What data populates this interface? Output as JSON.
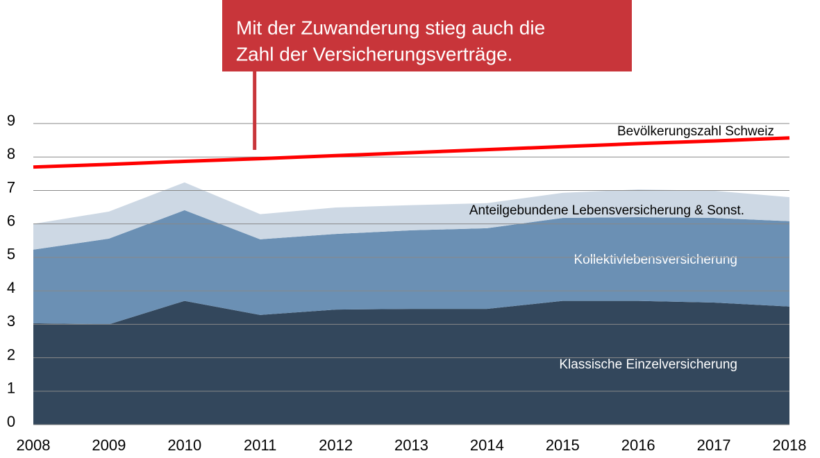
{
  "chart_data": {
    "type": "area",
    "stacked": true,
    "annotation": {
      "lines": [
        "Mit der Zuwanderung stieg auch die",
        "Zahl der Versicherungsverträge."
      ],
      "color": "#c8353a",
      "x": 2011
    },
    "x": [
      2008,
      2009,
      2010,
      2011,
      2012,
      2013,
      2014,
      2015,
      2016,
      2017,
      2018
    ],
    "series": [
      {
        "name": "Klassische Einzelversicherung",
        "color": "#33475c",
        "values": [
          3.03,
          3.0,
          3.7,
          3.28,
          3.44,
          3.46,
          3.46,
          3.7,
          3.7,
          3.65,
          3.53
        ]
      },
      {
        "name": "Kollektivlebensversicherung",
        "color": "#6b90b4",
        "values": [
          2.2,
          2.56,
          2.71,
          2.26,
          2.26,
          2.35,
          2.41,
          2.48,
          2.5,
          2.53,
          2.55
        ]
      },
      {
        "name": "Anteilgebundene Lebensversicherung & Sonst.",
        "color": "#cdd8e4",
        "values": [
          0.77,
          0.81,
          0.83,
          0.75,
          0.79,
          0.75,
          0.75,
          0.75,
          0.83,
          0.81,
          0.72
        ]
      },
      {
        "name": "Bevölkerungszahl Schweiz",
        "type": "line",
        "color": "#ff0000",
        "values": [
          7.7,
          7.78,
          7.87,
          7.95,
          8.04,
          8.13,
          8.22,
          8.31,
          8.4,
          8.48,
          8.57
        ]
      }
    ],
    "xlim": [
      2008,
      2018
    ],
    "xticks": [
      2008,
      2009,
      2010,
      2011,
      2012,
      2013,
      2014,
      2015,
      2016,
      2017,
      2018
    ],
    "ylim": [
      0,
      9
    ],
    "yticks": [
      0,
      1,
      2,
      3,
      4,
      5,
      6,
      7,
      8,
      9
    ],
    "grid": true
  }
}
